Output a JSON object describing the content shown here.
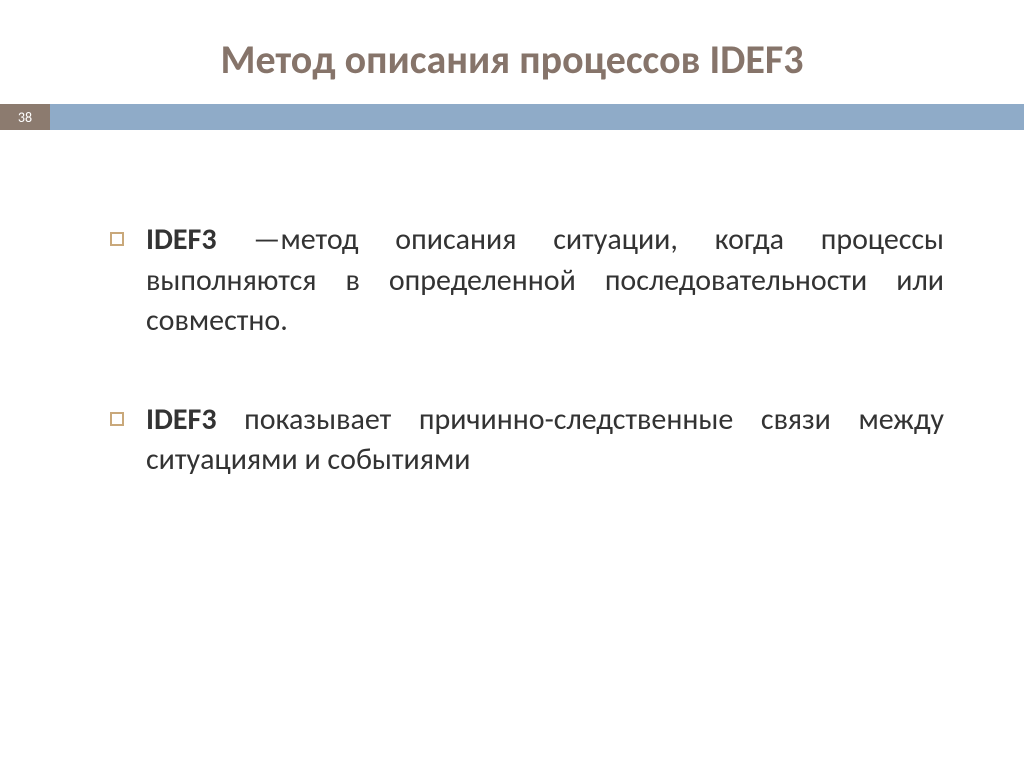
{
  "slide": {
    "title": "Метод описания процессов IDEF3",
    "page_number": "38",
    "colors": {
      "title_color": "#86746a",
      "badge_bg": "#8c7b6f",
      "badge_text": "#ffffff",
      "bar_bg": "#8fabc8",
      "bullet_border": "#c9a87a",
      "body_text": "#333333",
      "background": "#ffffff"
    },
    "typography": {
      "title_fontsize": 40,
      "body_fontsize": 30,
      "title_weight": "bold"
    },
    "bullets": [
      {
        "bold": "IDEF3",
        "text": " —метод описания ситуации, когда процессы выполняются в определенной последовательности или совместно."
      },
      {
        "bold": "IDEF3",
        "text": " показывает причинно-следственные связи между ситуациями и событиями"
      }
    ]
  }
}
